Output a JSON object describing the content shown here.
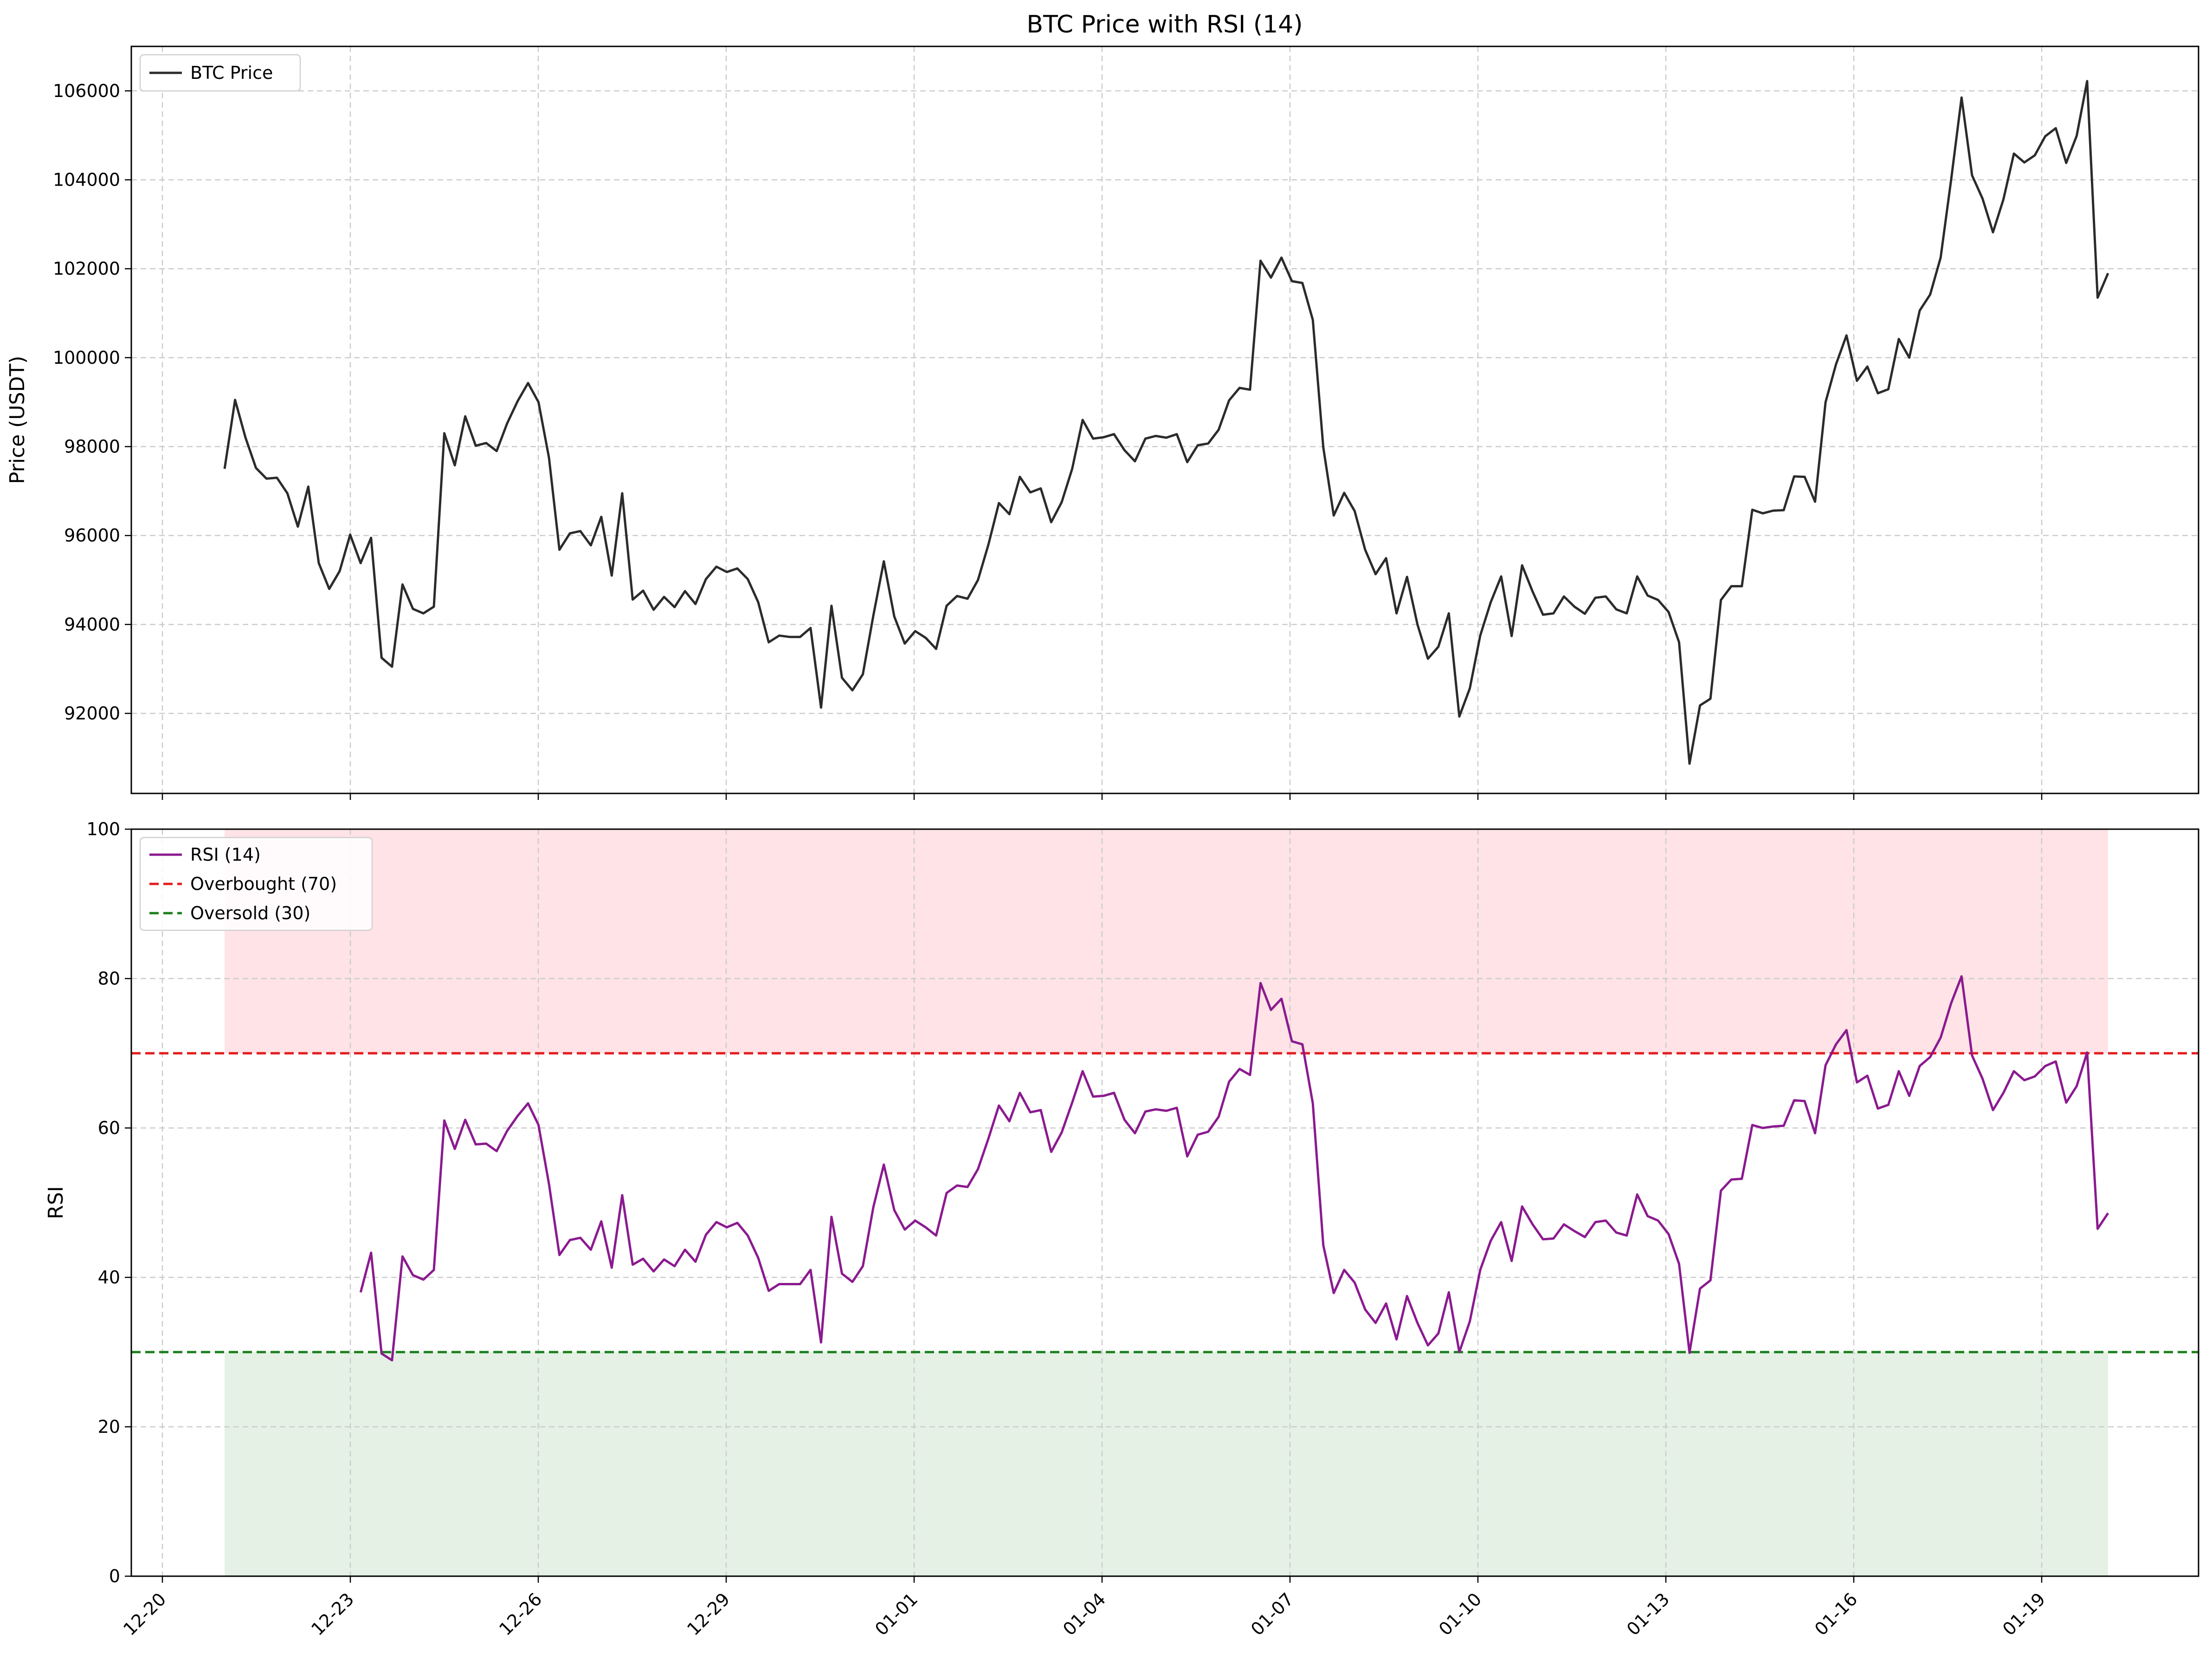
{
  "title": "BTC Price with RSI (14)",
  "colors": {
    "price_line": "#2b2b2b",
    "rsi_line": "#8b1a8f",
    "overbought": "#e31a1c",
    "oversold": "#1a7f1a",
    "overbought_zone": "#ffe3e6",
    "oversold_zone": "#e4f1e4",
    "grid": "#cccccc"
  },
  "chart_data": [
    {
      "type": "line",
      "ylabel": "Price (USDT)",
      "ylim": [
        90200,
        107000
      ],
      "yticks": [
        92000,
        94000,
        96000,
        98000,
        100000,
        102000,
        104000,
        106000
      ],
      "xticks": [
        "12-20",
        "12-23",
        "12-26",
        "12-29",
        "01-01",
        "01-04",
        "01-07",
        "01-10",
        "01-13",
        "01-16",
        "01-19"
      ],
      "grid": true,
      "legend_position": "upper-left",
      "series": [
        {
          "name": "BTC Price",
          "values": [
            97500,
            99050,
            98200,
            97520,
            97280,
            97300,
            96950,
            96200,
            97100,
            95380,
            94800,
            95200,
            96020,
            95380,
            95950,
            93250,
            93050,
            94900,
            94350,
            94250,
            94400,
            98300,
            97580,
            98680,
            98020,
            98080,
            97900,
            98520,
            99020,
            99430,
            99000,
            97750,
            95680,
            96050,
            96100,
            95780,
            96420,
            95100,
            96950,
            94560,
            94760,
            94330,
            94620,
            94390,
            94750,
            94460,
            95020,
            95300,
            95180,
            95260,
            95020,
            94500,
            93600,
            93750,
            93720,
            93720,
            93920,
            92130,
            94420,
            92800,
            92520,
            92880,
            94200,
            95420,
            94180,
            93570,
            93850,
            93700,
            93450,
            94420,
            94640,
            94580,
            95000,
            95800,
            96730,
            96480,
            97320,
            96970,
            97060,
            96300,
            96750,
            97500,
            98600,
            98180,
            98210,
            98280,
            97920,
            97670,
            98180,
            98240,
            98200,
            98280,
            97650,
            98030,
            98070,
            98380,
            99040,
            99320,
            99280,
            102180,
            101800,
            102250,
            101720,
            101680,
            100850,
            97980,
            96450,
            96960,
            96550,
            95680,
            95130,
            95490,
            94250,
            95070,
            94000,
            93230,
            93500,
            94250,
            91930,
            92560,
            93750,
            94500,
            95080,
            93740,
            95330,
            94740,
            94220,
            94250,
            94630,
            94400,
            94240,
            94600,
            94630,
            94340,
            94250,
            95080,
            94650,
            94550,
            94280,
            93600,
            90870,
            92180,
            92330,
            94550,
            94860,
            94860,
            96580,
            96500,
            96560,
            96570,
            97330,
            97320,
            96760,
            99000,
            99850,
            100500,
            99480,
            99800,
            99200,
            99290,
            100420,
            100000,
            101060,
            101420,
            102250,
            104000,
            105850,
            104100,
            103580,
            102820,
            103560,
            104590,
            104390,
            104550,
            104980,
            105160,
            104380,
            104990,
            106220,
            101350,
            101900
          ]
        }
      ]
    },
    {
      "type": "line",
      "ylabel": "RSI",
      "ylim": [
        0,
        100
      ],
      "yticks": [
        0,
        20,
        40,
        60,
        80,
        100
      ],
      "xticks": [
        "12-20",
        "12-23",
        "12-26",
        "12-29",
        "01-01",
        "01-04",
        "01-07",
        "01-10",
        "01-13",
        "01-16",
        "01-19"
      ],
      "grid": true,
      "legend_position": "upper-left",
      "reference_lines": [
        {
          "name": "Overbought (70)",
          "value": 70
        },
        {
          "name": "Oversold (30)",
          "value": 30
        }
      ],
      "series": [
        {
          "name": "RSI (14)",
          "start_index": 13,
          "values": [
            38.0,
            43.3,
            29.8,
            28.9,
            42.8,
            40.3,
            39.7,
            41.0,
            61.0,
            57.2,
            61.1,
            57.8,
            57.9,
            56.9,
            59.6,
            61.6,
            63.3,
            60.4,
            52.5,
            43.0,
            45.0,
            45.3,
            43.7,
            47.5,
            41.3,
            51.0,
            41.7,
            42.5,
            40.8,
            42.4,
            41.5,
            43.7,
            42.1,
            45.7,
            47.4,
            46.7,
            47.3,
            45.6,
            42.6,
            38.2,
            39.1,
            39.1,
            39.1,
            41.0,
            31.3,
            48.1,
            40.5,
            39.4,
            41.5,
            49.4,
            55.1,
            49.0,
            46.4,
            47.6,
            46.7,
            45.6,
            51.3,
            52.3,
            52.1,
            54.5,
            58.6,
            63.0,
            60.9,
            64.7,
            62.1,
            62.4,
            56.8,
            59.4,
            63.4,
            67.6,
            64.2,
            64.3,
            64.7,
            61.1,
            59.3,
            62.2,
            62.5,
            62.3,
            62.7,
            56.2,
            59.1,
            59.5,
            61.5,
            66.2,
            67.9,
            67.1,
            79.4,
            75.8,
            77.3,
            71.6,
            71.2,
            63.3,
            44.3,
            37.9,
            41.0,
            39.3,
            35.7,
            33.9,
            36.5,
            31.7,
            37.5,
            33.9,
            30.9,
            32.5,
            38.0,
            30.0,
            34.1,
            41.0,
            44.9,
            47.4,
            42.2,
            49.5,
            47.1,
            45.1,
            45.2,
            47.1,
            46.2,
            45.4,
            47.4,
            47.6,
            46.0,
            45.6,
            51.1,
            48.2,
            47.6,
            45.8,
            41.8,
            29.9,
            38.5,
            39.6,
            51.6,
            53.1,
            53.2,
            60.4,
            60.0,
            60.2,
            60.3,
            63.7,
            63.6,
            59.3,
            68.4,
            71.2,
            73.1,
            66.1,
            67.0,
            62.6,
            63.1,
            67.6,
            64.3,
            68.3,
            69.5,
            72.1,
            76.7,
            80.3,
            69.7,
            66.6,
            62.4,
            64.7,
            67.6,
            66.4,
            66.9,
            68.3,
            68.9,
            63.4,
            65.6,
            70.1,
            46.5,
            48.6
          ]
        }
      ]
    }
  ]
}
